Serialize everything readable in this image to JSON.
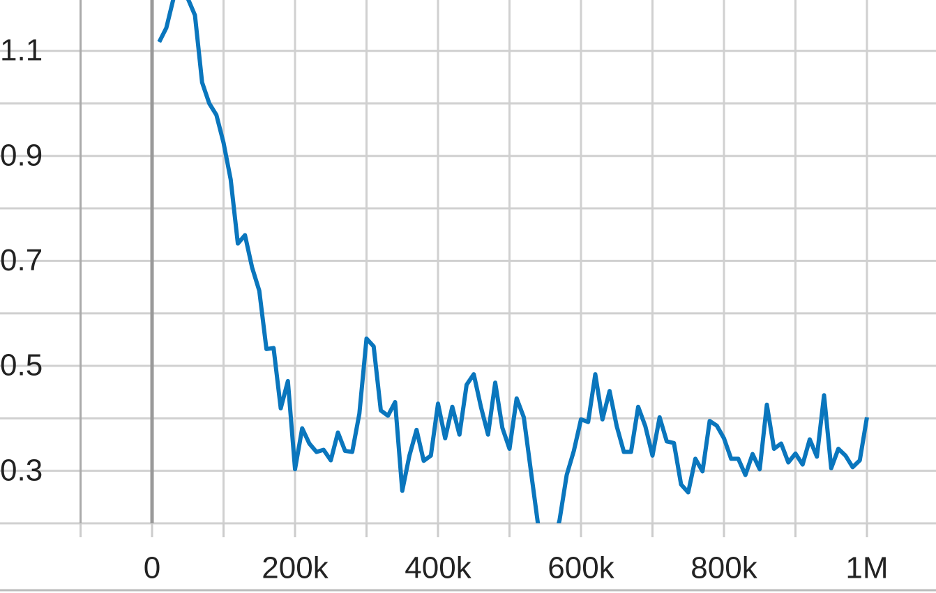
{
  "chart_data": {
    "type": "line",
    "x": [
      10000,
      20000,
      30000,
      40000,
      50000,
      60000,
      70000,
      80000,
      90000,
      100000,
      110000,
      120000,
      130000,
      140000,
      150000,
      160000,
      170000,
      180000,
      190000,
      200000,
      210000,
      220000,
      230000,
      240000,
      250000,
      260000,
      270000,
      280000,
      290000,
      300000,
      310000,
      320000,
      330000,
      340000,
      350000,
      360000,
      370000,
      380000,
      390000,
      400000,
      410000,
      420000,
      430000,
      440000,
      450000,
      460000,
      470000,
      480000,
      490000,
      500000,
      510000,
      520000,
      530000,
      540000,
      550000,
      560000,
      570000,
      580000,
      590000,
      600000,
      610000,
      620000,
      630000,
      640000,
      650000,
      660000,
      670000,
      680000,
      690000,
      700000,
      710000,
      720000,
      730000,
      740000,
      750000,
      760000,
      770000,
      780000,
      790000,
      800000,
      810000,
      820000,
      830000,
      840000,
      850000,
      860000,
      870000,
      880000,
      890000,
      900000,
      910000,
      920000,
      930000,
      940000,
      950000,
      960000,
      970000,
      980000,
      990000,
      1000000
    ],
    "series": [
      {
        "color": "#0a76bd",
        "values": [
          1.117,
          1.144,
          1.2,
          1.21,
          1.2,
          1.168,
          1.04,
          1.0,
          0.978,
          0.925,
          0.855,
          0.733,
          0.749,
          0.687,
          0.643,
          0.532,
          0.534,
          0.419,
          0.471,
          0.303,
          0.381,
          0.352,
          0.336,
          0.34,
          0.32,
          0.373,
          0.338,
          0.336,
          0.409,
          0.552,
          0.537,
          0.415,
          0.405,
          0.431,
          0.262,
          0.329,
          0.378,
          0.319,
          0.329,
          0.428,
          0.362,
          0.422,
          0.369,
          0.464,
          0.484,
          0.422,
          0.369,
          0.468,
          0.382,
          0.342,
          0.438,
          0.402,
          0.299,
          0.197,
          0.14,
          0.15,
          0.206,
          0.292,
          0.338,
          0.398,
          0.393,
          0.484,
          0.398,
          0.452,
          0.385,
          0.336,
          0.336,
          0.422,
          0.385,
          0.329,
          0.402,
          0.356,
          0.353,
          0.274,
          0.259,
          0.323,
          0.299,
          0.395,
          0.386,
          0.362,
          0.323,
          0.323,
          0.292,
          0.332,
          0.303,
          0.426,
          0.342,
          0.352,
          0.316,
          0.333,
          0.312,
          0.36,
          0.327,
          0.444,
          0.305,
          0.342,
          0.329,
          0.307,
          0.32,
          0.402
        ]
      }
    ],
    "xlim": [
      -212700,
      1096600
    ],
    "ylim": [
      0.2,
      1.197
    ],
    "xticks": [
      0,
      {
        "value": 200000,
        "label": "200k"
      },
      {
        "value": 400000,
        "label": "400k"
      },
      {
        "value": 600000,
        "label": "600k"
      },
      {
        "value": 800000,
        "label": "800k"
      },
      {
        "value": 1000000,
        "label": "1M"
      }
    ],
    "xminorticks": [
      -100000,
      100000,
      300000,
      500000,
      700000,
      900000
    ],
    "yticks": [
      0.3,
      0.5,
      0.7,
      0.9,
      1.1
    ],
    "yminorticks": [
      0.2,
      0.4,
      0.6,
      0.8,
      1.0
    ],
    "grid": true
  }
}
